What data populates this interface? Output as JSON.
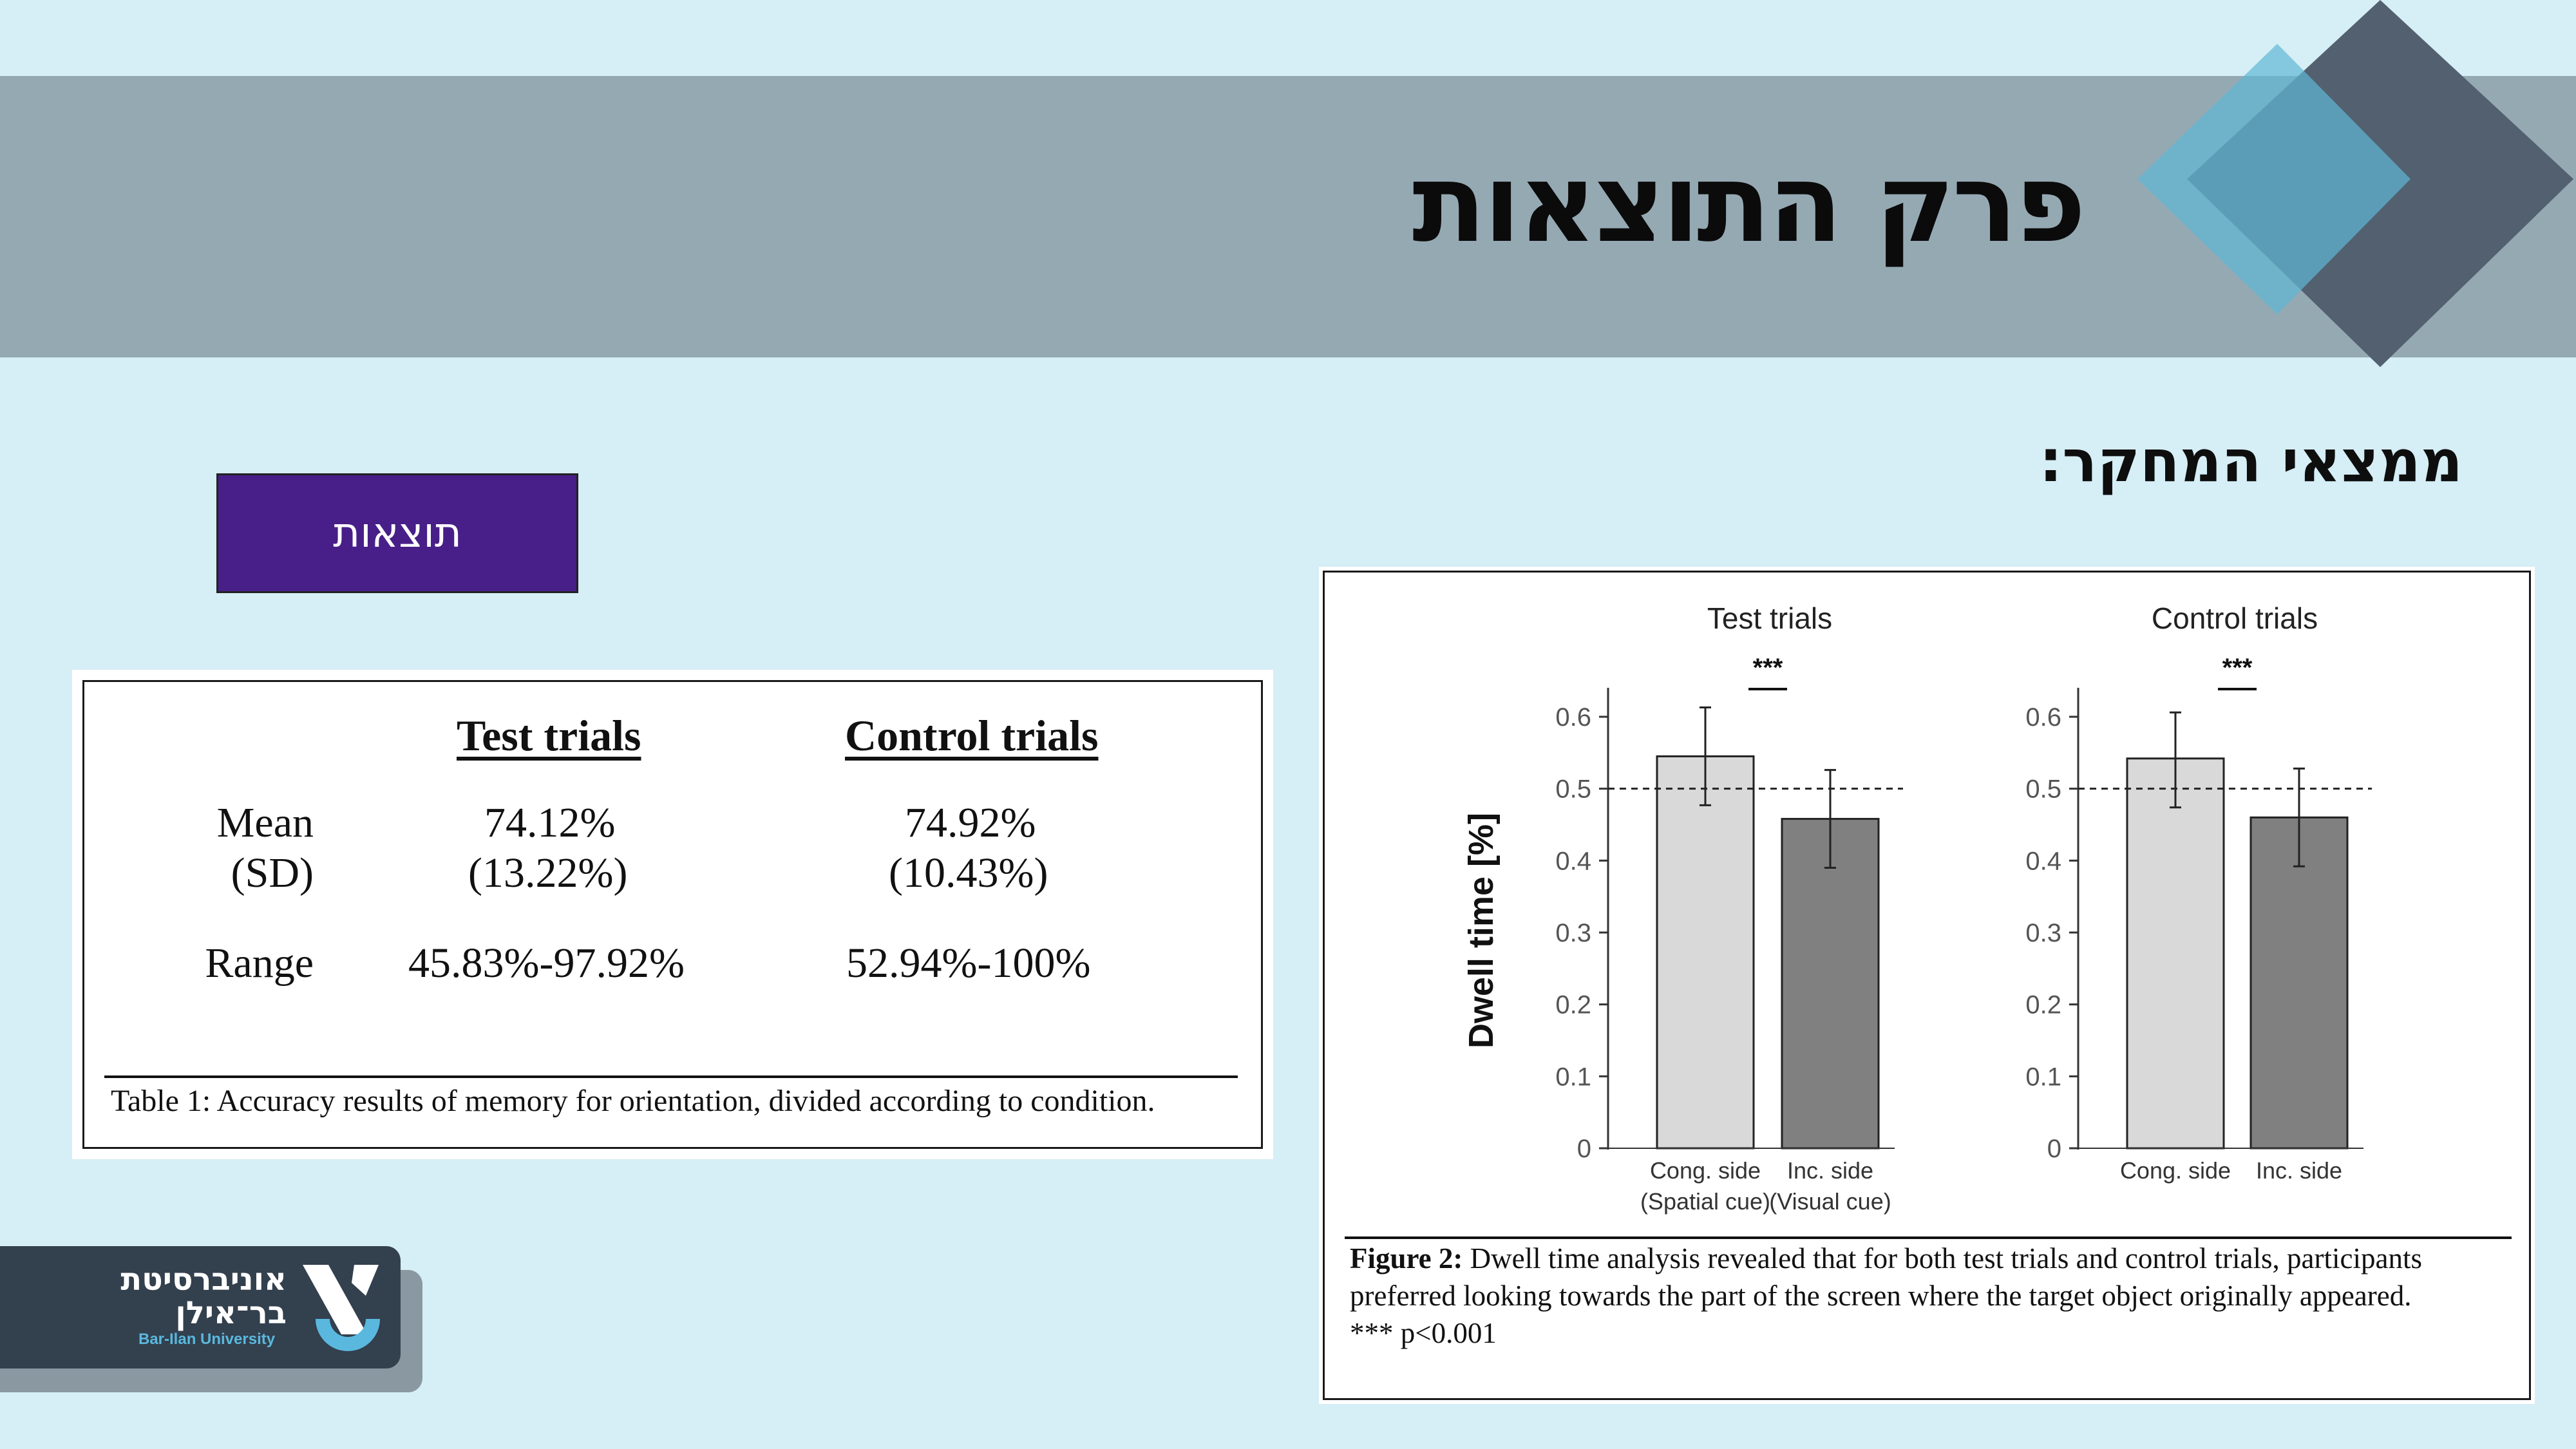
{
  "slide": {
    "title": "פרק התוצאות",
    "section_heading": "ממצאי המחקר:",
    "button_label": "תוצאות",
    "colors": {
      "background": "#d6eef5",
      "banner": "#95a9b3",
      "button": "#481f88"
    }
  },
  "table": {
    "headers": [
      "Test trials",
      "Control trials"
    ],
    "rows": [
      {
        "label_line1": "Mean",
        "label_line2": "(SD)",
        "test_line1": "74.12%",
        "test_line2": "(13.22%)",
        "control_line1": "74.92%",
        "control_line2": "(10.43%)"
      },
      {
        "label_line1": "Range",
        "test_line1": "45.83%-97.92%",
        "control_line1": "52.94%-100%"
      }
    ],
    "caption": "Table 1: Accuracy results of memory for orientation, divided according to condition."
  },
  "figure": {
    "caption_bold": "Figure 2:",
    "caption_text": " Dwell time analysis revealed that for both test trials and control trials, participants preferred looking towards the part of the screen where the target object originally appeared.",
    "caption_note": "*** p<0.001"
  },
  "chart_data": [
    {
      "type": "bar",
      "title": "Test trials",
      "ylabel": "Dwell  time [%]",
      "ylim": [
        0,
        0.6
      ],
      "yticks": [
        "0",
        "0.1",
        "0.2",
        "0.3",
        "0.4",
        "0.5",
        "0.6"
      ],
      "reference_line": 0.5,
      "significance": "***",
      "categories": [
        "Cong. side",
        "Inc. side"
      ],
      "category_sublabels": [
        "(Spatial cue)",
        "(Visual cue)"
      ],
      "values": [
        0.545,
        0.458
      ],
      "error_low": [
        0.477,
        0.39
      ],
      "error_high": [
        0.613,
        0.526
      ],
      "colors": [
        "#d9d9d9",
        "#808080"
      ]
    },
    {
      "type": "bar",
      "title": "Control trials",
      "ylim": [
        0,
        0.6
      ],
      "yticks": [
        "0",
        "0.1",
        "0.2",
        "0.3",
        "0.4",
        "0.5",
        "0.6"
      ],
      "reference_line": 0.5,
      "significance": "***",
      "categories": [
        "Cong. side",
        "Inc. side"
      ],
      "values": [
        0.542,
        0.46
      ],
      "error_low": [
        0.474,
        0.392
      ],
      "error_high": [
        0.606,
        0.528
      ],
      "colors": [
        "#d9d9d9",
        "#808080"
      ]
    }
  ],
  "logo": {
    "hebrew_line1": "אוניברסיטת",
    "hebrew_line2": "בר־אילן",
    "english": "Bar-Ilan University"
  }
}
